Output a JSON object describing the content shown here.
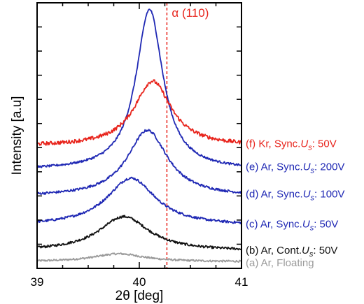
{
  "chart_data": {
    "type": "line",
    "xlabel": "2θ [deg]",
    "ylabel": "Intensity [a.u]",
    "xlim": [
      39,
      41
    ],
    "ylim": [
      0,
      100
    ],
    "xticks": [
      "39",
      "40",
      "41"
    ],
    "grid": false,
    "annotation": {
      "label": "α (110)",
      "x": 40.27,
      "color": "#e8241c",
      "line_style": "dashed"
    },
    "series": [
      {
        "name": "(a) Ar, Floating",
        "color": "#9a9a9a",
        "baseline": 2.5,
        "peak_height": 3,
        "center": 39.8,
        "width": 0.3,
        "noise": 0.35
      },
      {
        "name": "(b) Ar, Cont.Us: 50V",
        "color": "#111111",
        "baseline": 6.5,
        "peak_height": 13,
        "center": 39.85,
        "width": 0.3,
        "noise": 0.45
      },
      {
        "name": "(c) Ar, Sync.Us: 50V",
        "color": "#1f28b4",
        "baseline": 16,
        "peak_height": 18,
        "center": 39.92,
        "width": 0.29,
        "noise": 0.45
      },
      {
        "name": "(d) Ar, Sync.Us: 100V",
        "color": "#1f28b4",
        "baseline": 27,
        "peak_height": 25,
        "center": 40.08,
        "width": 0.24,
        "noise": 0.45
      },
      {
        "name": "(e) Ar, Sync.Us: 200V",
        "color": "#1f28b4",
        "baseline": 37,
        "peak_height": 60.5,
        "center": 40.1,
        "width": 0.16,
        "noise": 0.4
      },
      {
        "name": "(f) Kr, Sync.Us: 50V",
        "color": "#e8241c",
        "baseline": 46,
        "peak_height": 24.5,
        "center": 40.13,
        "width": 0.22,
        "noise": 0.7
      }
    ]
  }
}
